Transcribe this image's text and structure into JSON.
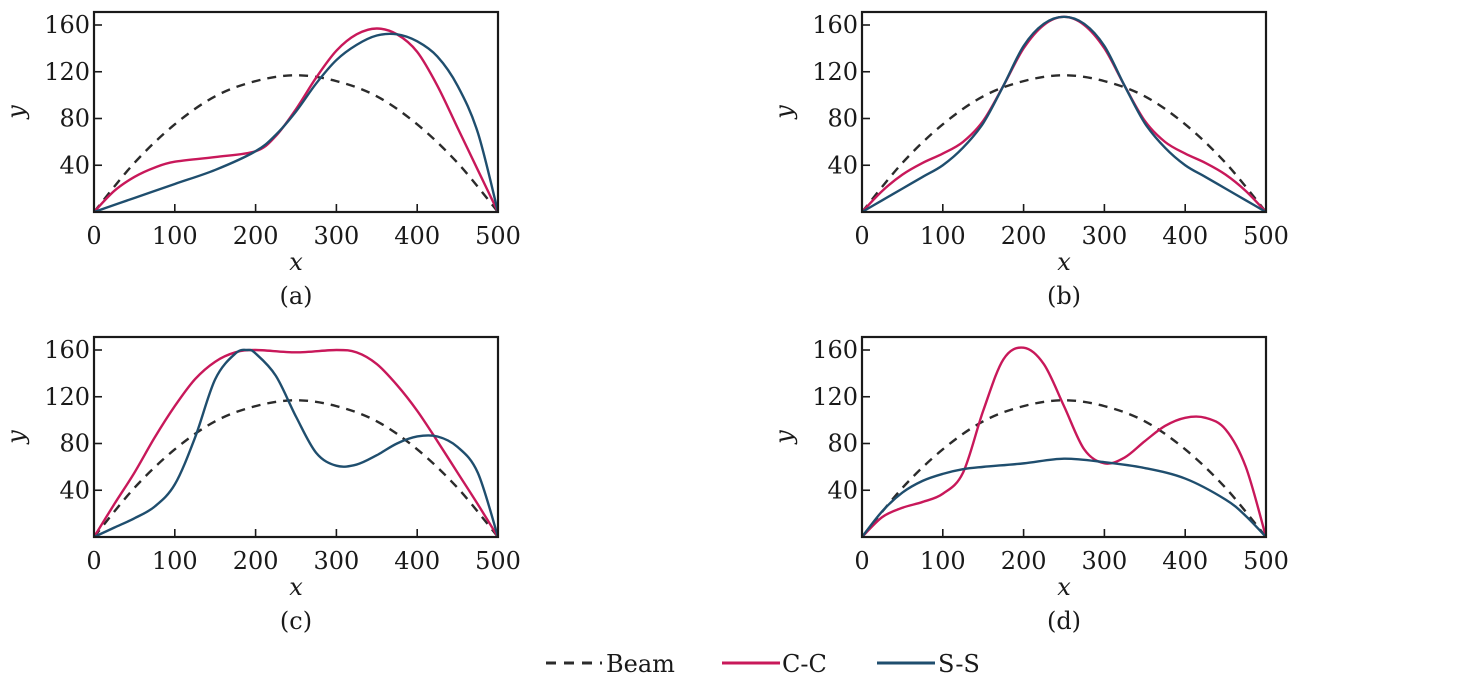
{
  "figure": {
    "legend": [
      {
        "name": "Beam",
        "color": "#2b2b2b",
        "dash": true
      },
      {
        "name": "C-C",
        "color": "#c8185a",
        "dash": false
      },
      {
        "name": "S-S",
        "color": "#1f4e6e",
        "dash": false
      }
    ]
  },
  "chart_data": [
    {
      "type": "line",
      "panel_label": "(a)",
      "xlabel": "x",
      "ylabel": "y",
      "xlim": [
        0,
        500
      ],
      "ylim": [
        0,
        170
      ],
      "xticks": [
        0,
        100,
        200,
        300,
        400,
        500
      ],
      "yticks": [
        40,
        80,
        120,
        160
      ],
      "grid": false,
      "series": [
        {
          "name": "Beam",
          "x": [
            0,
            50,
            100,
            150,
            200,
            250,
            300,
            350,
            400,
            450,
            500
          ],
          "y": [
            0,
            42,
            75,
            99,
            112,
            117,
            112,
            99,
            75,
            42,
            0
          ]
        },
        {
          "name": "C-C",
          "x": [
            0,
            25,
            50,
            75,
            100,
            150,
            200,
            225,
            250,
            275,
            300,
            325,
            350,
            375,
            400,
            425,
            450,
            475,
            500
          ],
          "y": [
            0,
            18,
            30,
            38,
            43,
            47,
            52,
            65,
            88,
            115,
            138,
            152,
            157,
            152,
            137,
            108,
            72,
            36,
            0
          ]
        },
        {
          "name": "S-S",
          "x": [
            0,
            50,
            100,
            150,
            200,
            225,
            250,
            275,
            300,
            325,
            350,
            375,
            400,
            425,
            450,
            475,
            500
          ],
          "y": [
            0,
            12,
            24,
            36,
            52,
            66,
            86,
            110,
            130,
            143,
            151,
            152,
            146,
            133,
            108,
            68,
            0
          ]
        }
      ]
    },
    {
      "type": "line",
      "panel_label": "(b)",
      "xlabel": "x",
      "ylabel": "y",
      "xlim": [
        0,
        500
      ],
      "ylim": [
        0,
        170
      ],
      "xticks": [
        0,
        100,
        200,
        300,
        400,
        500
      ],
      "yticks": [
        40,
        80,
        120,
        160
      ],
      "grid": false,
      "series": [
        {
          "name": "Beam",
          "x": [
            0,
            50,
            100,
            150,
            200,
            250,
            300,
            350,
            400,
            450,
            500
          ],
          "y": [
            0,
            42,
            75,
            99,
            112,
            117,
            112,
            99,
            75,
            42,
            0
          ]
        },
        {
          "name": "C-C",
          "x": [
            0,
            25,
            50,
            75,
            100,
            125,
            150,
            175,
            200,
            225,
            250,
            275,
            300,
            325,
            350,
            375,
            400,
            425,
            450,
            475,
            500
          ],
          "y": [
            0,
            18,
            32,
            42,
            50,
            60,
            78,
            108,
            140,
            160,
            167,
            160,
            140,
            108,
            78,
            60,
            50,
            42,
            32,
            18,
            0
          ]
        },
        {
          "name": "S-S",
          "x": [
            0,
            25,
            50,
            75,
            100,
            125,
            150,
            175,
            200,
            225,
            250,
            275,
            300,
            325,
            350,
            375,
            400,
            425,
            450,
            475,
            500
          ],
          "y": [
            0,
            10,
            20,
            30,
            40,
            55,
            76,
            108,
            142,
            161,
            167,
            161,
            142,
            108,
            76,
            55,
            40,
            30,
            20,
            10,
            0
          ]
        }
      ]
    },
    {
      "type": "line",
      "panel_label": "(c)",
      "xlabel": "x",
      "ylabel": "y",
      "xlim": [
        0,
        500
      ],
      "ylim": [
        0,
        170
      ],
      "xticks": [
        0,
        100,
        200,
        300,
        400,
        500
      ],
      "yticks": [
        40,
        80,
        120,
        160
      ],
      "grid": false,
      "series": [
        {
          "name": "Beam",
          "x": [
            0,
            50,
            100,
            150,
            200,
            250,
            300,
            350,
            400,
            450,
            500
          ],
          "y": [
            0,
            42,
            75,
            99,
            112,
            117,
            112,
            99,
            75,
            42,
            0
          ]
        },
        {
          "name": "C-C",
          "x": [
            0,
            25,
            50,
            75,
            100,
            125,
            150,
            175,
            200,
            250,
            300,
            325,
            350,
            375,
            400,
            425,
            450,
            475,
            500
          ],
          "y": [
            0,
            28,
            55,
            85,
            112,
            135,
            150,
            158,
            160,
            158,
            160,
            158,
            148,
            130,
            108,
            82,
            55,
            28,
            0
          ]
        },
        {
          "name": "S-S",
          "x": [
            0,
            25,
            50,
            75,
            100,
            125,
            150,
            175,
            190,
            200,
            225,
            250,
            275,
            300,
            325,
            350,
            375,
            400,
            425,
            450,
            475,
            500
          ],
          "y": [
            0,
            8,
            16,
            26,
            45,
            85,
            135,
            157,
            160,
            157,
            138,
            103,
            72,
            61,
            62,
            70,
            80,
            86,
            86,
            77,
            55,
            0
          ]
        }
      ]
    },
    {
      "type": "line",
      "panel_label": "(d)",
      "xlabel": "x",
      "ylabel": "y",
      "xlim": [
        0,
        500
      ],
      "ylim": [
        0,
        170
      ],
      "xticks": [
        0,
        100,
        200,
        300,
        400,
        500
      ],
      "yticks": [
        40,
        80,
        120,
        160
      ],
      "grid": false,
      "series": [
        {
          "name": "Beam",
          "x": [
            0,
            50,
            100,
            150,
            200,
            250,
            300,
            350,
            400,
            450,
            500
          ],
          "y": [
            0,
            42,
            75,
            99,
            112,
            117,
            112,
            99,
            75,
            42,
            0
          ]
        },
        {
          "name": "C-C",
          "x": [
            0,
            25,
            50,
            75,
            100,
            125,
            150,
            175,
            200,
            225,
            250,
            275,
            300,
            325,
            350,
            375,
            400,
            425,
            450,
            475,
            500
          ],
          "y": [
            0,
            17,
            25,
            30,
            37,
            55,
            108,
            152,
            162,
            148,
            112,
            75,
            63,
            68,
            82,
            95,
            102,
            102,
            92,
            60,
            0
          ]
        },
        {
          "name": "S-S",
          "x": [
            0,
            25,
            50,
            75,
            100,
            125,
            150,
            200,
            250,
            300,
            350,
            400,
            450,
            475,
            500
          ],
          "y": [
            0,
            22,
            38,
            48,
            54,
            58,
            60,
            63,
            67,
            64,
            59,
            50,
            32,
            18,
            0
          ]
        }
      ]
    }
  ]
}
